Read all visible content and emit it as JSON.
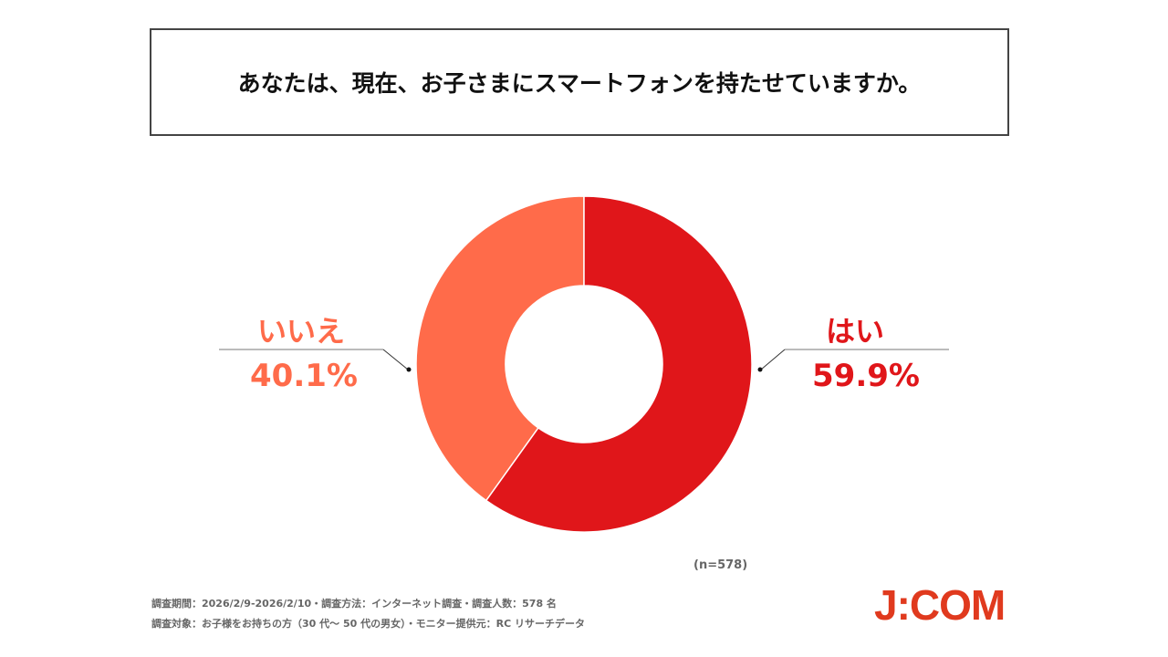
{
  "chart_data": {
    "type": "pie",
    "title": "あなたは、現在、お子さまにスマートフォンを持たせていますか。",
    "donut": true,
    "slices": [
      {
        "label": "はい",
        "value": 59.9,
        "value_label": "59.9%",
        "color": "#E0161A"
      },
      {
        "label": "いいえ",
        "value": 40.1,
        "value_label": "40.1%",
        "color": "#FF6B4A"
      }
    ],
    "sample_size": "(n=578)"
  },
  "footer": {
    "line1": "調査期間：2026/2/9-2026/2/10・調査方法：インターネット調査・調査人数：578 名",
    "line2": "調査対象：お子様をお持ちの方（30 代～ 50 代の男女）・モニター提供元：RC リサーチデータ"
  },
  "logo": "J:COM"
}
